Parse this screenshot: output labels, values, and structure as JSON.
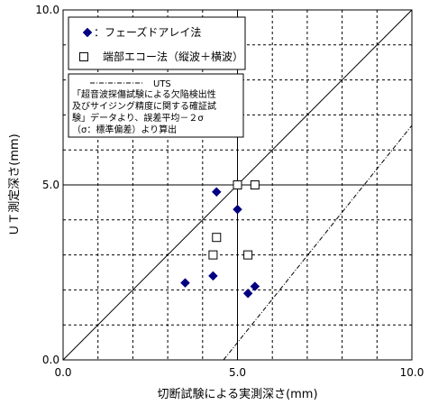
{
  "chart_data": {
    "type": "scatter",
    "xlabel": "切断試験による実測深さ(mm)",
    "ylabel": "ＵＴ測定深さ(mm)",
    "xlim": [
      0,
      10
    ],
    "ylim": [
      0,
      10
    ],
    "x_ticks": [
      "0.0",
      "5.0",
      "10.0"
    ],
    "y_ticks": [
      "0.0",
      "5.0",
      "10.0"
    ],
    "grid": true,
    "legend_position": "top-left",
    "series": [
      {
        "name": "：フェーズドアレイ法",
        "marker": "diamond",
        "color": "#000080",
        "points": [
          {
            "x": 3.5,
            "y": 2.2
          },
          {
            "x": 4.3,
            "y": 2.4
          },
          {
            "x": 4.4,
            "y": 4.8
          },
          {
            "x": 5.0,
            "y": 4.3
          },
          {
            "x": 5.3,
            "y": 1.9
          },
          {
            "x": 5.5,
            "y": 2.1
          }
        ]
      },
      {
        "name": "端部エコー法（縦波＋横波）",
        "marker": "square-open",
        "color": "#000000",
        "points": [
          {
            "x": 5.0,
            "y": 5.0
          },
          {
            "x": 5.5,
            "y": 5.0
          },
          {
            "x": 4.4,
            "y": 3.5
          },
          {
            "x": 4.3,
            "y": 3.0
          },
          {
            "x": 5.3,
            "y": 3.0
          }
        ]
      }
    ],
    "reference_lines": [
      {
        "kind": "identity",
        "style": "solid",
        "from": [
          0,
          0
        ],
        "to": [
          10,
          10
        ]
      },
      {
        "kind": "uts_limit",
        "style": "dash-dot",
        "from": [
          4.6,
          0
        ],
        "to": [
          10,
          6.7
        ]
      }
    ],
    "annotation": {
      "title": "UTS",
      "lines": [
        "「超音波探傷試験による欠陥検出性",
        "及びサイジング精度に関する確証試",
        "験」データより、誤差平均－２σ",
        "（σ：標準偏差）より算出"
      ]
    }
  }
}
